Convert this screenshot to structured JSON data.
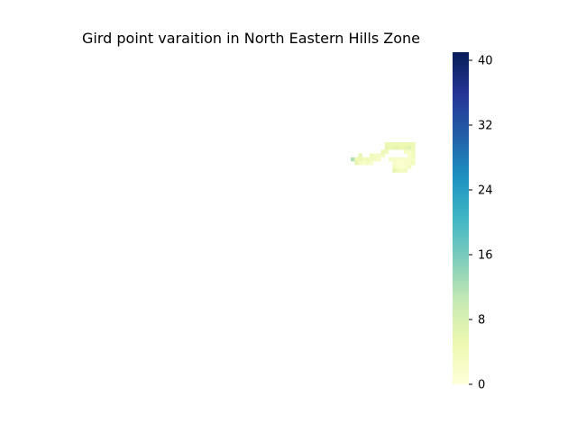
{
  "chart_data": {
    "type": "heatmap",
    "title": "Gird point varaition in North Eastern Hills Zone",
    "xlabel": "",
    "ylabel": "",
    "colormap": "YlGnBu",
    "colorbar": {
      "vmin": 0,
      "vmax": 41,
      "ticks": [
        0,
        8,
        16,
        24,
        32,
        40
      ],
      "tick_labels": [
        "0",
        "8",
        "16",
        "24",
        "32",
        "40"
      ],
      "stops": [
        "#ffffd9",
        "#edf8b1",
        "#c7e9b4",
        "#7fcdbb",
        "#41b6c4",
        "#1d91c0",
        "#225ea8",
        "#253494",
        "#081d58"
      ]
    },
    "grid": false,
    "axes_visible": false,
    "cells": [
      {
        "row": 0,
        "col": 4,
        "value": 5
      },
      {
        "row": 0,
        "col": 5,
        "value": 5
      },
      {
        "row": 0,
        "col": 6,
        "value": 5
      },
      {
        "row": 0,
        "col": 7,
        "value": 5
      },
      {
        "row": 0,
        "col": 8,
        "value": 5
      },
      {
        "row": 0,
        "col": 9,
        "value": 5
      },
      {
        "row": 0,
        "col": 10,
        "value": 5
      },
      {
        "row": 0,
        "col": 11,
        "value": 5
      },
      {
        "row": 1,
        "col": 4,
        "value": 6
      },
      {
        "row": 1,
        "col": 5,
        "value": 5
      },
      {
        "row": 1,
        "col": 6,
        "value": 6
      },
      {
        "row": 1,
        "col": 7,
        "value": 6
      },
      {
        "row": 1,
        "col": 8,
        "value": 5
      },
      {
        "row": 1,
        "col": 9,
        "value": 6
      },
      {
        "row": 1,
        "col": 10,
        "value": 7
      },
      {
        "row": 1,
        "col": 11,
        "value": 5
      },
      {
        "row": 2,
        "col": 3,
        "value": 5
      },
      {
        "row": 2,
        "col": 4,
        "value": 4
      },
      {
        "row": 2,
        "col": 9,
        "value": 3
      },
      {
        "row": 2,
        "col": 10,
        "value": 2
      },
      {
        "row": 2,
        "col": 11,
        "value": 4
      },
      {
        "row": 3,
        "col": -3,
        "value": 6
      },
      {
        "row": 3,
        "col": 0,
        "value": 4
      },
      {
        "row": 3,
        "col": 1,
        "value": 3
      },
      {
        "row": 3,
        "col": 2,
        "value": 3
      },
      {
        "row": 3,
        "col": 3,
        "value": 3
      },
      {
        "row": 3,
        "col": 10,
        "value": 2
      },
      {
        "row": 3,
        "col": 11,
        "value": 4
      },
      {
        "row": 4,
        "col": -5,
        "value": 12
      },
      {
        "row": 4,
        "col": -4,
        "value": 5
      },
      {
        "row": 4,
        "col": -3,
        "value": 5
      },
      {
        "row": 4,
        "col": -2,
        "value": 4
      },
      {
        "row": 4,
        "col": -1,
        "value": 4
      },
      {
        "row": 4,
        "col": 0,
        "value": 3
      },
      {
        "row": 4,
        "col": 1,
        "value": 3
      },
      {
        "row": 4,
        "col": 2,
        "value": 2
      },
      {
        "row": 4,
        "col": 5,
        "value": 3
      },
      {
        "row": 4,
        "col": 6,
        "value": 2
      },
      {
        "row": 4,
        "col": 7,
        "value": 2
      },
      {
        "row": 4,
        "col": 8,
        "value": 2
      },
      {
        "row": 4,
        "col": 9,
        "value": 2
      },
      {
        "row": 4,
        "col": 10,
        "value": 2
      },
      {
        "row": 4,
        "col": 11,
        "value": 3
      },
      {
        "row": 5,
        "col": -4,
        "value": 6
      },
      {
        "row": 5,
        "col": -3,
        "value": 3
      },
      {
        "row": 5,
        "col": -2,
        "value": 2
      },
      {
        "row": 5,
        "col": -1,
        "value": 3
      },
      {
        "row": 5,
        "col": 0,
        "value": 2
      },
      {
        "row": 5,
        "col": 6,
        "value": 2
      },
      {
        "row": 5,
        "col": 7,
        "value": 1
      },
      {
        "row": 5,
        "col": 8,
        "value": 1
      },
      {
        "row": 5,
        "col": 9,
        "value": 2
      },
      {
        "row": 5,
        "col": 10,
        "value": 2
      },
      {
        "row": 5,
        "col": 11,
        "value": 4
      },
      {
        "row": 6,
        "col": 6,
        "value": 3
      },
      {
        "row": 6,
        "col": 7,
        "value": 2
      },
      {
        "row": 6,
        "col": 8,
        "value": 1
      },
      {
        "row": 6,
        "col": 9,
        "value": 2
      },
      {
        "row": 6,
        "col": 10,
        "value": 3
      },
      {
        "row": 7,
        "col": 6,
        "value": 6
      },
      {
        "row": 7,
        "col": 7,
        "value": 4
      },
      {
        "row": 7,
        "col": 8,
        "value": 3
      },
      {
        "row": 7,
        "col": 9,
        "value": 3
      }
    ]
  }
}
